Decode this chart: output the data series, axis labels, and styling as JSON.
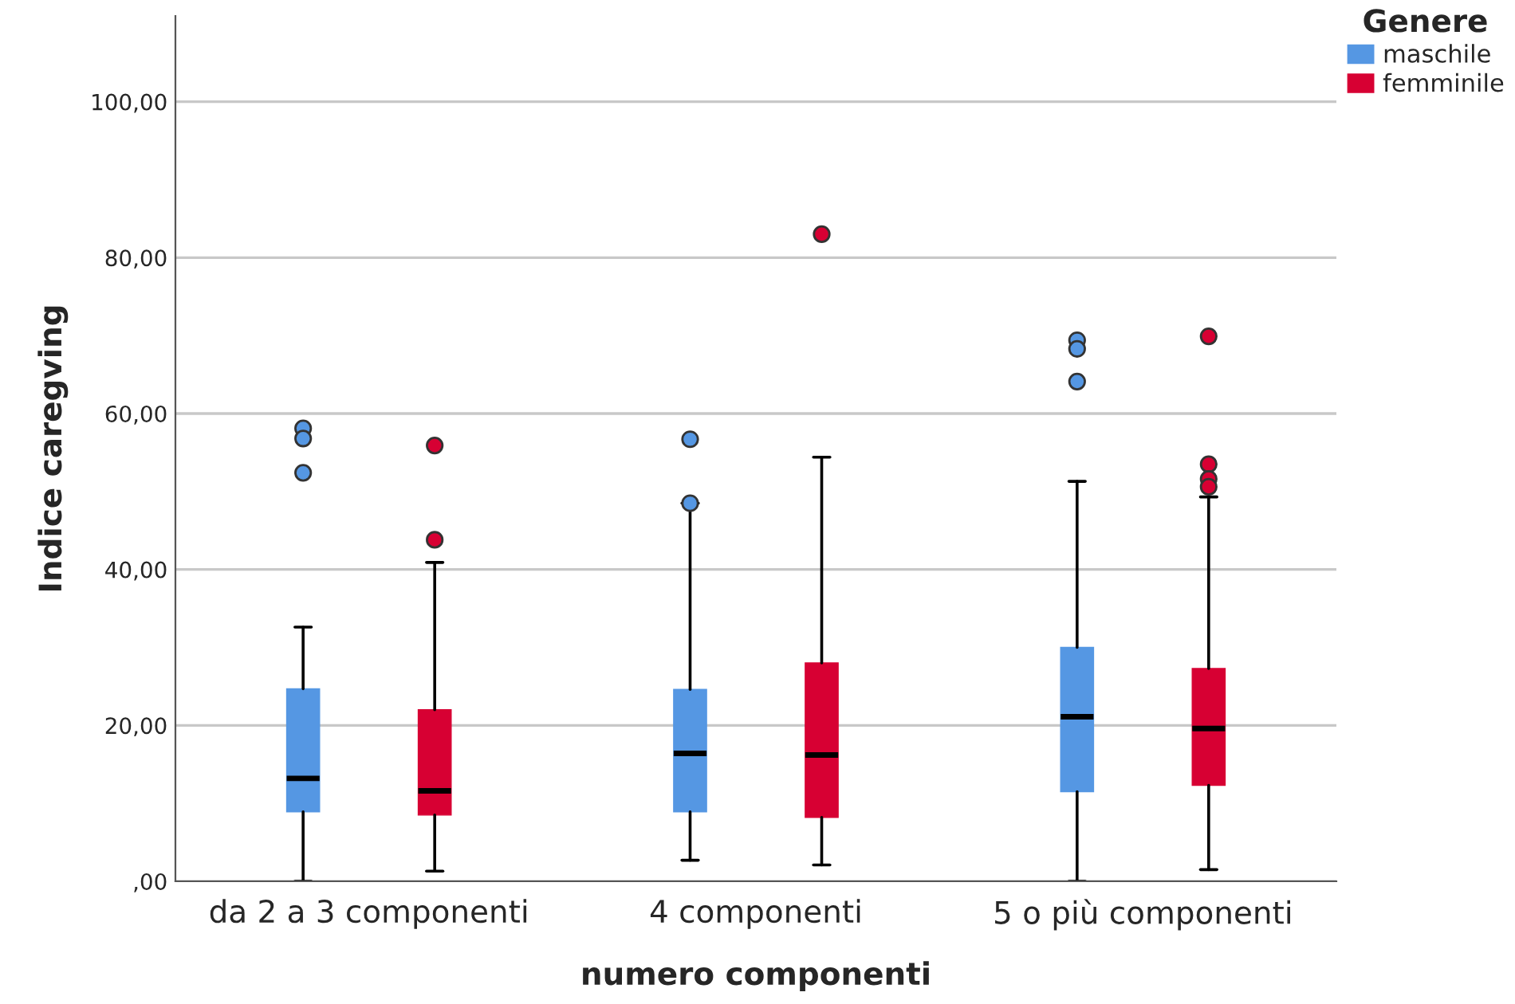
{
  "chart_data": {
    "type": "box",
    "xlabel": "numero componenti",
    "ylabel": "Indice caregving",
    "legend_title": "Genere",
    "categories": [
      "da 2 a 3 componenti",
      "4 componenti",
      "5 o più componenti"
    ],
    "series": [
      {
        "name": "maschile",
        "color": "#5597e3",
        "boxes": [
          {
            "low": 0,
            "q1": 8.9,
            "median": 13.2,
            "q3": 24.7,
            "high": 32.6,
            "outliers": [
              58.1,
              56.8,
              52.4
            ]
          },
          {
            "low": 2.7,
            "q1": 8.9,
            "median": 16.4,
            "q3": 24.6,
            "high": 48.5,
            "outliers": [
              48.5,
              56.7
            ]
          },
          {
            "low": 0,
            "q1": 11.5,
            "median": 21.1,
            "q3": 30,
            "high": 51.3,
            "outliers": [
              69.4,
              68.3,
              64.1
            ]
          }
        ]
      },
      {
        "name": "femminile",
        "color": "#d70033",
        "boxes": [
          {
            "low": 1.3,
            "q1": 8.5,
            "median": 11.6,
            "q3": 22,
            "high": 40.9,
            "outliers": [
              55.9,
              43.8
            ]
          },
          {
            "low": 2.1,
            "q1": 8.2,
            "median": 16.2,
            "q3": 28,
            "high": 54.4,
            "outliers": [
              83
            ]
          },
          {
            "low": 1.5,
            "q1": 12.3,
            "median": 19.6,
            "q3": 27.3,
            "high": 49.3,
            "outliers": [
              69.9,
              53.5,
              51.6,
              50.6
            ]
          }
        ]
      }
    ],
    "ylim": [
      0,
      111
    ],
    "yticks": [
      {
        "value": 0,
        "label": ",00"
      },
      {
        "value": 20,
        "label": "20,00"
      },
      {
        "value": 40,
        "label": "40,00"
      },
      {
        "value": 60,
        "label": "60,00"
      },
      {
        "value": 80,
        "label": "80,00"
      },
      {
        "value": 100,
        "label": "100,00"
      }
    ],
    "grid": "y",
    "legend": "top right"
  }
}
